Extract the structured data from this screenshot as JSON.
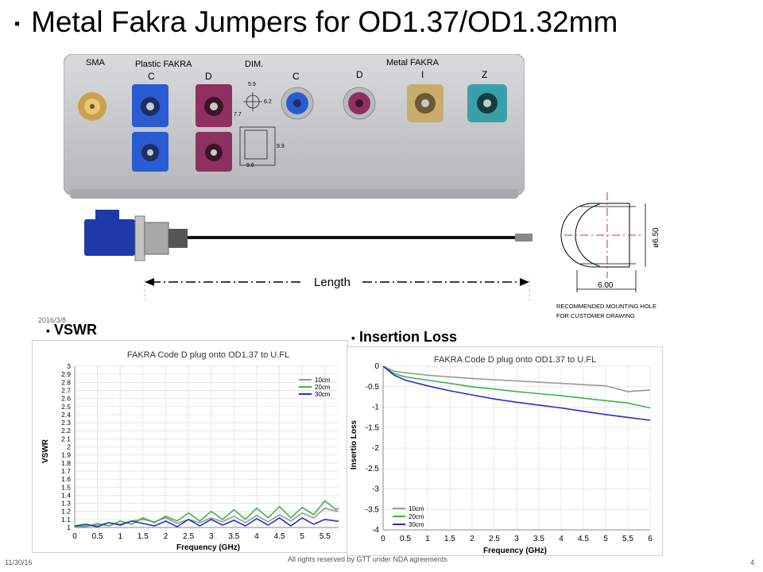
{
  "slide": {
    "title": "Metal Fakra Jumpers for OD1.37/OD1.32mm",
    "date_mark": "2016/3/8",
    "footer_left": "11/30/16",
    "footer_center": "All rights reserved by GTT under NDA agreements",
    "footer_right": "4"
  },
  "photo": {
    "labels": {
      "sma": "SMA",
      "plastic": "Plastic FAKRA",
      "dim": "DIM.",
      "metal": "Metal FAKRA",
      "c1": "C",
      "d1": "D",
      "c2": "C",
      "d2": "D",
      "i": "I",
      "z": "Z",
      "dim_a": "5.9",
      "dim_b": "6.2",
      "dim_c": "7.7",
      "dim_d": "9.9",
      "dim_e": "9.6"
    }
  },
  "cable": {
    "length_label": "Length"
  },
  "drawing": {
    "diameter": "ø6.50",
    "width": "6.00",
    "note_line1": "RECOMMENDED  MOUNTING  HOLE",
    "note_line2": "FOR  CUSTOMER   DRAWING"
  },
  "colors": {
    "series_10cm": "#999999",
    "series_20cm": "#3cb44b",
    "series_30cm": "#2430c8",
    "fakra_blue": "#2a5bd0",
    "fakra_violet": "#8e3060",
    "fakra_beige": "#c9ad6e",
    "fakra_teal": "#3aa0a8"
  },
  "chart_data": [
    {
      "type": "line",
      "section_title": "VSWR",
      "title": "FAKRA Code D plug onto OD1.37 to U.FL",
      "xlabel": "Frequency (GHz)",
      "ylabel": "VSWR",
      "xlim": [
        0,
        5.8
      ],
      "ylim": [
        1,
        3
      ],
      "xticks": [
        "0",
        "0.5",
        "1",
        "1.5",
        "2",
        "2.5",
        "3",
        "3.5",
        "4",
        "4.5",
        "5",
        "5.5"
      ],
      "yticks": [
        "1",
        "1.1",
        "1.2",
        "1.3",
        "1.4",
        "1.5",
        "1.6",
        "1.7",
        "1.8",
        "1.9",
        "2",
        "2.1",
        "2.2",
        "2.3",
        "2.4",
        "2.5",
        "2.6",
        "2.7",
        "2.8",
        "2.9",
        "3"
      ],
      "legend_position": "top-right",
      "x": [
        0,
        0.25,
        0.5,
        0.75,
        1,
        1.25,
        1.5,
        1.75,
        2,
        2.25,
        2.5,
        2.75,
        3,
        3.25,
        3.5,
        3.75,
        4,
        4.25,
        4.5,
        4.75,
        5,
        5.25,
        5.5,
        5.75,
        5.8
      ],
      "series": [
        {
          "name": "10cm",
          "values": [
            1.01,
            1.02,
            1.03,
            1.06,
            1.04,
            1.08,
            1.1,
            1.07,
            1.12,
            1.05,
            1.1,
            1.06,
            1.12,
            1.07,
            1.14,
            1.06,
            1.15,
            1.07,
            1.16,
            1.08,
            1.18,
            1.12,
            1.24,
            1.2,
            1.2
          ]
        },
        {
          "name": "20cm",
          "values": [
            1.02,
            1.01,
            1.05,
            1.02,
            1.08,
            1.04,
            1.12,
            1.06,
            1.14,
            1.08,
            1.18,
            1.08,
            1.2,
            1.1,
            1.22,
            1.1,
            1.24,
            1.12,
            1.26,
            1.12,
            1.25,
            1.16,
            1.33,
            1.22,
            1.24
          ]
        },
        {
          "name": "30cm",
          "values": [
            1.02,
            1.04,
            1.01,
            1.06,
            1.03,
            1.08,
            1.05,
            1.02,
            1.08,
            1.01,
            1.1,
            1.02,
            1.1,
            1.03,
            1.09,
            1.02,
            1.11,
            1.03,
            1.12,
            1.02,
            1.12,
            1.04,
            1.1,
            1.08,
            1.08
          ]
        }
      ]
    },
    {
      "type": "line",
      "section_title": "Insertion Loss",
      "title": "FAKRA Code D plug onto OD1.37 to U.FL",
      "xlabel": "Frequency (GHz)",
      "ylabel": "Insertio Loss",
      "xlim": [
        0,
        6
      ],
      "ylim": [
        -4,
        0
      ],
      "xticks": [
        "0",
        "0.5",
        "1",
        "1.5",
        "2",
        "2.5",
        "3",
        "3.5",
        "4",
        "4.5",
        "5",
        "5.5",
        "6"
      ],
      "yticks": [
        "0",
        "-0.5",
        "-1",
        "-1.5",
        "-2",
        "-2.5",
        "-3",
        "-3.5",
        "-4"
      ],
      "legend_position": "bottom-left",
      "x": [
        0,
        0.25,
        0.5,
        1,
        1.5,
        2,
        2.5,
        3,
        3.5,
        4,
        4.5,
        5,
        5.5,
        6
      ],
      "series": [
        {
          "name": "10cm",
          "values": [
            0,
            -0.12,
            -0.16,
            -0.22,
            -0.26,
            -0.3,
            -0.33,
            -0.36,
            -0.39,
            -0.42,
            -0.45,
            -0.48,
            -0.62,
            -0.58
          ]
        },
        {
          "name": "20cm",
          "values": [
            0,
            -0.18,
            -0.26,
            -0.34,
            -0.42,
            -0.5,
            -0.56,
            -0.62,
            -0.67,
            -0.72,
            -0.78,
            -0.84,
            -0.9,
            -1.02
          ]
        },
        {
          "name": "30cm",
          "values": [
            0,
            -0.22,
            -0.34,
            -0.48,
            -0.6,
            -0.7,
            -0.8,
            -0.88,
            -0.95,
            -1.02,
            -1.1,
            -1.18,
            -1.25,
            -1.32
          ]
        }
      ]
    }
  ]
}
